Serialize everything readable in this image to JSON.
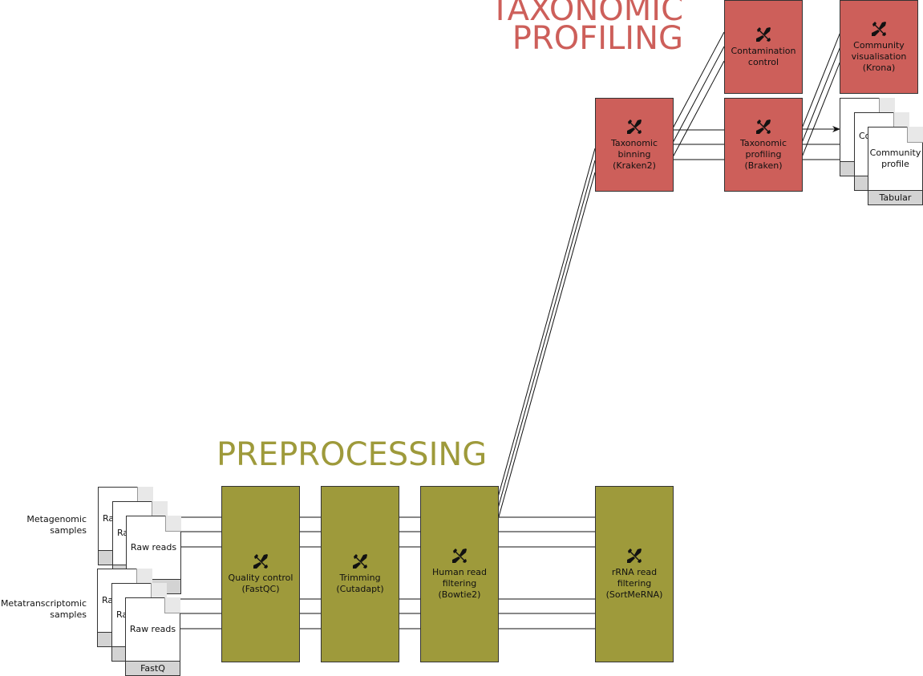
{
  "sections": {
    "taxonomic_title_line1": "TAXONOMIC",
    "taxonomic_title_line2": "PROFILING",
    "preprocessing_title": "PREPROCESSING"
  },
  "inputs": {
    "metagenomic_label": "Metagenomic\nsamples",
    "metatranscriptomic_label": "Metatranscriptomic\nsamples",
    "raw_reads": "Raw reads",
    "raw_reads_partial": "Ra",
    "raw_reads_partial2": "Raw r",
    "fastq": "FastQ"
  },
  "preprocessing": {
    "quality_control": "Quality control\n(FastQC)",
    "trimming": "Trimming\n(Cutadapt)",
    "human_filtering": "Human read\nfiltering\n(Bowtie2)",
    "rrna_filtering": "rRNA read\nfiltering\n(SortMeRNA)"
  },
  "taxonomic": {
    "binning": "Taxonomic\nbinning\n(Kraken2)",
    "contamination": "Contamination\ncontrol",
    "profiling": "Taxonomic\nprofiling\n(Braken)",
    "visualisation": "Community\nvisualisation\n(Krona)"
  },
  "outputs": {
    "community_profile": "Community\nprofile",
    "partial_label": "Co",
    "tabular": "Tabular"
  },
  "icons": {
    "tool": "wrench-screwdriver-icon"
  },
  "colors": {
    "taxonomic": "#cd5f5a",
    "preprocessing": "#9e9a3b"
  }
}
